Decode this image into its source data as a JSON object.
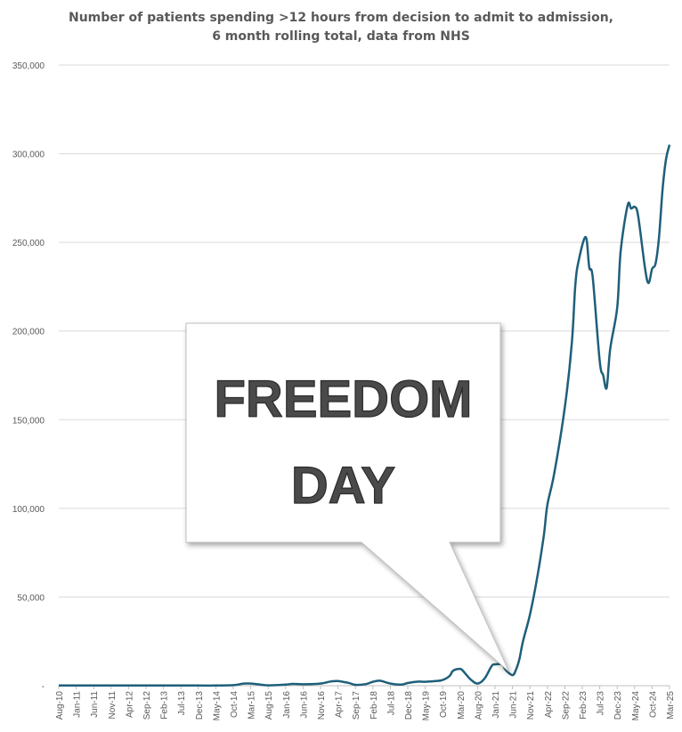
{
  "chart_data": {
    "type": "line",
    "title_lines": [
      "Number of patients spending >12 hours from decision to admit to admission,",
      "6 month rolling total, data from NHS"
    ],
    "xlabel": "",
    "ylabel": "",
    "ylim": [
      0,
      350000
    ],
    "y_ticks": [
      0,
      50000,
      100000,
      150000,
      200000,
      250000,
      300000,
      350000
    ],
    "y_tick_labels": [
      "-",
      "50,000",
      "100,000",
      "150,000",
      "200,000",
      "250,000",
      "300,000",
      "350,000"
    ],
    "grid": true,
    "legend": "none",
    "line_color": "#1f5f7a",
    "x_tick_labels": [
      "Aug-10",
      "Jan-11",
      "Jun-11",
      "Nov-11",
      "Apr-12",
      "Sep-12",
      "Feb-13",
      "Jul-13",
      "Dec-13",
      "May-14",
      "Oct-14",
      "Mar-15",
      "Aug-15",
      "Jan-16",
      "Jun-16",
      "Nov-16",
      "Apr-17",
      "Sep-17",
      "Feb-18",
      "Jul-18",
      "Dec-18",
      "May-19",
      "Oct-19",
      "Mar-20",
      "Aug-20",
      "Jan-21",
      "Jun-21",
      "Nov-21",
      "Apr-22",
      "Sep-22",
      "Feb-23",
      "Jul-23",
      "Dec-23",
      "May-24",
      "Oct-24",
      "Mar-25"
    ],
    "series": [
      {
        "points": [
          [
            "Aug-10",
            100
          ],
          [
            "Jan-11",
            100
          ],
          [
            "Jun-11",
            100
          ],
          [
            "Nov-11",
            100
          ],
          [
            "Apr-12",
            100
          ],
          [
            "Sep-12",
            100
          ],
          [
            "Feb-13",
            100
          ],
          [
            "Jul-13",
            100
          ],
          [
            "Dec-13",
            100
          ],
          [
            "May-14",
            100
          ],
          [
            "Oct-14",
            300
          ],
          [
            "Jan-15",
            1200
          ],
          [
            "Mar-15",
            1200
          ],
          [
            "May-15",
            800
          ],
          [
            "Aug-15",
            200
          ],
          [
            "Jan-16",
            600
          ],
          [
            "Mar-16",
            1000
          ],
          [
            "Jun-16",
            800
          ],
          [
            "Nov-16",
            1200
          ],
          [
            "Feb-17",
            2400
          ],
          [
            "Apr-17",
            2600
          ],
          [
            "Jul-17",
            1600
          ],
          [
            "Sep-17",
            500
          ],
          [
            "Dec-17",
            900
          ],
          [
            "Feb-18",
            2200
          ],
          [
            "Apr-18",
            2800
          ],
          [
            "Jul-18",
            1200
          ],
          [
            "Oct-18",
            600
          ],
          [
            "Dec-18",
            1500
          ],
          [
            "Mar-19",
            2300
          ],
          [
            "May-19",
            2200
          ],
          [
            "Aug-19",
            2600
          ],
          [
            "Oct-19",
            3200
          ],
          [
            "Dec-19",
            5500
          ],
          [
            "Jan-20",
            8500
          ],
          [
            "Mar-20",
            9500
          ],
          [
            "Apr-20",
            8000
          ],
          [
            "Jun-20",
            3500
          ],
          [
            "Aug-20",
            1200
          ],
          [
            "Oct-20",
            4000
          ],
          [
            "Dec-20",
            11000
          ],
          [
            "Jan-21",
            12000
          ],
          [
            "Mar-21",
            12000
          ],
          [
            "Apr-21",
            9000
          ],
          [
            "Jun-21",
            6000
          ],
          [
            "Jul-21",
            9000
          ],
          [
            "Aug-21",
            15000
          ],
          [
            "Sep-21",
            25000
          ],
          [
            "Nov-21",
            40000
          ],
          [
            "Jan-22",
            60000
          ],
          [
            "Mar-22",
            85000
          ],
          [
            "Apr-22",
            102000
          ],
          [
            "Jun-22",
            120000
          ],
          [
            "Sep-22",
            157000
          ],
          [
            "Nov-22",
            193000
          ],
          [
            "Dec-22",
            226000
          ],
          [
            "Jan-23",
            240000
          ],
          [
            "Mar-23",
            253000
          ],
          [
            "Apr-23",
            236000
          ],
          [
            "May-23",
            230000
          ],
          [
            "Jul-23",
            183000
          ],
          [
            "Aug-23",
            175000
          ],
          [
            "Sep-23",
            168000
          ],
          [
            "Oct-23",
            190000
          ],
          [
            "Dec-23",
            213000
          ],
          [
            "Jan-24",
            245000
          ],
          [
            "Mar-24",
            271000
          ],
          [
            "Apr-24",
            269000
          ],
          [
            "May-24",
            270000
          ],
          [
            "Jun-24",
            265000
          ],
          [
            "Aug-24",
            235000
          ],
          [
            "Sep-24",
            227000
          ],
          [
            "Oct-24",
            235000
          ],
          [
            "Nov-24",
            238000
          ],
          [
            "Dec-24",
            253000
          ],
          [
            "Jan-25",
            280000
          ],
          [
            "Feb-25",
            297000
          ],
          [
            "Mar-25",
            305000
          ]
        ]
      }
    ],
    "annotations": [
      {
        "text_lines": [
          "FREEDOM",
          "DAY"
        ],
        "points_to": [
          "Jun-21",
          6000
        ],
        "fill": "#ffffff",
        "text_color": "#4a4a4a"
      }
    ]
  }
}
